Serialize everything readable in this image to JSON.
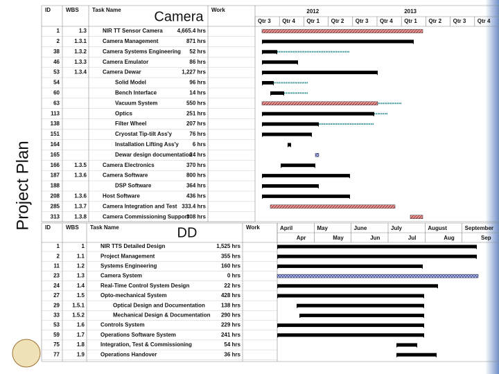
{
  "sidebar_title": "Project Plan",
  "camera_plan": {
    "label": "Camera",
    "columns": [
      "ID",
      "WBS",
      "Task Name",
      "Work"
    ],
    "years": [
      "2012",
      "2013"
    ],
    "quarters": [
      "Qtr 3",
      "Qtr 4",
      "Qtr 1",
      "Qtr 2",
      "Qtr 3",
      "Qtr 4",
      "Qtr 1",
      "Qtr 2",
      "Qtr 3",
      "Qtr 4"
    ],
    "rows": [
      {
        "id": "1",
        "wbs": "1.3",
        "name": "NIR TT Sensor Camera",
        "work": "4,665.4 hrs"
      },
      {
        "id": "2",
        "wbs": "1.3.1",
        "name": "Camera Management",
        "work": "871 hrs"
      },
      {
        "id": "38",
        "wbs": "1.3.2",
        "name": "Camera Systems Engineering",
        "work": "52 hrs"
      },
      {
        "id": "46",
        "wbs": "1.3.3",
        "name": "Camera Emulator",
        "work": "86 hrs"
      },
      {
        "id": "53",
        "wbs": "1.3.4",
        "name": "Camera Dewar",
        "work": "1,227 hrs"
      },
      {
        "id": "54",
        "name": "Solid Model",
        "work": "96 hrs"
      },
      {
        "id": "60",
        "name": "Bench Interface",
        "work": "14 hrs"
      },
      {
        "id": "63",
        "name": "Vacuum System",
        "work": "550 hrs"
      },
      {
        "id": "113",
        "name": "Optics",
        "work": "251 hrs"
      },
      {
        "id": "138",
        "name": "Filter Wheel",
        "work": "207 hrs"
      },
      {
        "id": "151",
        "name": "Cryostat Tip-tilt Ass'y",
        "work": "76 hrs"
      },
      {
        "id": "164",
        "name": "Installation Lifting Ass'y",
        "work": "6 hrs"
      },
      {
        "id": "165",
        "name": "Dewar design documentation",
        "work": "24 hrs"
      },
      {
        "id": "166",
        "wbs": "1.3.5",
        "name": "Camera Electronics",
        "work": "370 hrs"
      },
      {
        "id": "187",
        "wbs": "1.3.6",
        "name": "Camera Software",
        "work": "800 hrs"
      },
      {
        "id": "188",
        "name": "DSP Software",
        "work": "364 hrs"
      },
      {
        "id": "208",
        "wbs": "1.3.6",
        "name": "Host Software",
        "work": "436 hrs"
      },
      {
        "id": "285",
        "wbs": "1.3.7",
        "name": "Camera Integration and Test",
        "work": "333.4 hrs"
      },
      {
        "id": "313",
        "wbs": "1.3.8",
        "name": "Camera Commissioning Support",
        "work": "308 hrs"
      }
    ]
  },
  "dd_plan": {
    "label": "DD",
    "columns": [
      "ID",
      "WBS",
      "Task Name",
      "Work"
    ],
    "months": [
      "April",
      "May",
      "June",
      "July",
      "August",
      "September"
    ],
    "months_short": [
      "Apr",
      "May",
      "Jun",
      "Jul",
      "Aug",
      "Sep"
    ],
    "rows": [
      {
        "id": "1",
        "wbs": "1",
        "name": "NIR TTS Detailed Design",
        "work": "1,525 hrs"
      },
      {
        "id": "2",
        "wbs": "1.1",
        "name": "Project Management",
        "work": "355 hrs"
      },
      {
        "id": "11",
        "wbs": "1.2",
        "name": "Systems Engineering",
        "work": "160 hrs"
      },
      {
        "id": "23",
        "wbs": "1.3",
        "name": "Camera System",
        "work": "0 hrs"
      },
      {
        "id": "24",
        "wbs": "1.4",
        "name": "Real-Time Control System Design",
        "work": "22 hrs"
      },
      {
        "id": "27",
        "wbs": "1.5",
        "name": "Opto-mechanical System",
        "work": "428 hrs"
      },
      {
        "id": "29",
        "wbs": "1.5.1",
        "name": "Optical Design and Documentation",
        "work": "138 hrs"
      },
      {
        "id": "33",
        "wbs": "1.5.2",
        "name": "Mechanical Design & Documentation",
        "work": "290 hrs"
      },
      {
        "id": "53",
        "wbs": "1.6",
        "name": "Controls System",
        "work": "229 hrs"
      },
      {
        "id": "59",
        "wbs": "1.7",
        "name": "Operations Software System",
        "work": "241 hrs"
      },
      {
        "id": "75",
        "wbs": "1.8",
        "name": "Integration, Test & Commissioning",
        "work": "54 hrs"
      },
      {
        "id": "77",
        "wbs": "1.9",
        "name": "Operations Handover",
        "work": "36 hrs"
      }
    ]
  }
}
